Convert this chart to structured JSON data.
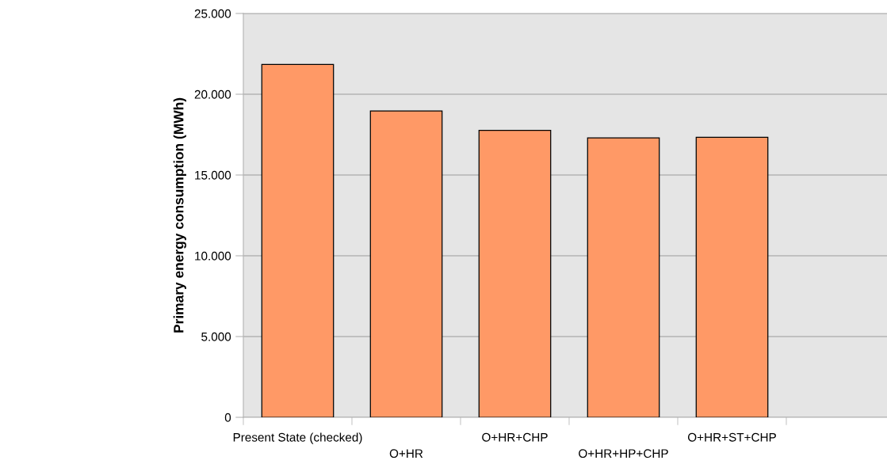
{
  "chart_data": {
    "type": "bar",
    "ylabel": "Primary energy consumption (MWh)",
    "categories": [
      "Present State (checked)",
      "O+HR",
      "O+HR+CHP",
      "O+HR+HP+CHP",
      "O+HR+ST+CHP",
      null
    ],
    "values": [
      21850,
      18970,
      17760,
      17300,
      17340,
      null
    ],
    "color": "#ff9966",
    "ylim": [
      0,
      25000
    ],
    "yticks": [
      {
        "value": 0,
        "label": "0"
      },
      {
        "value": 5000,
        "label": "5.000"
      },
      {
        "value": 10000,
        "label": "10.000"
      },
      {
        "value": 15000,
        "label": "15.000"
      },
      {
        "value": 20000,
        "label": "20.000"
      },
      {
        "value": 25000,
        "label": "25.000"
      }
    ],
    "grid": "y",
    "legend": false
  }
}
